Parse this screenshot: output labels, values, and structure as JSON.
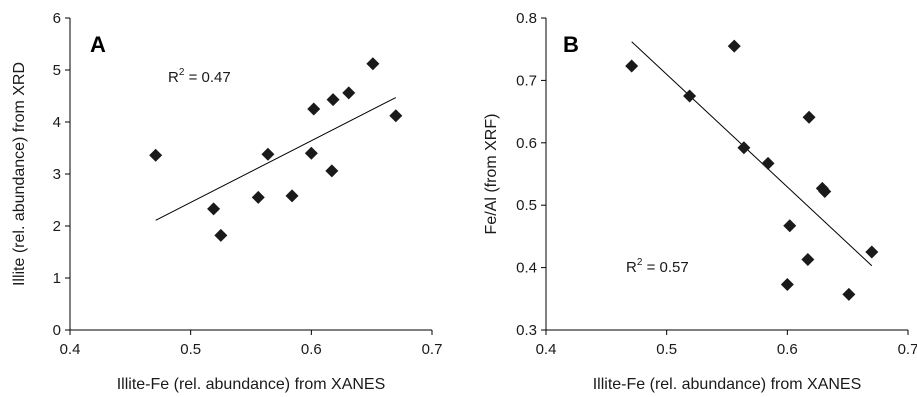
{
  "chart_data": [
    {
      "type": "scatter",
      "panel_label": "A",
      "xlabel": "Illite-Fe (rel. abundance) from XANES",
      "ylabel": "Illite (rel. abundance) from XRD",
      "xlim": [
        0.4,
        0.7
      ],
      "ylim": [
        0,
        6
      ],
      "xticks": [
        "0.4",
        "0.5",
        "0.6",
        "0.7"
      ],
      "yticks": [
        "0",
        "1",
        "2",
        "3",
        "4",
        "5",
        "6"
      ],
      "points": [
        {
          "x": 0.471,
          "y": 3.36
        },
        {
          "x": 0.519,
          "y": 2.33
        },
        {
          "x": 0.525,
          "y": 1.82
        },
        {
          "x": 0.556,
          "y": 2.55
        },
        {
          "x": 0.564,
          "y": 3.38
        },
        {
          "x": 0.584,
          "y": 2.58
        },
        {
          "x": 0.6,
          "y": 3.4
        },
        {
          "x": 0.602,
          "y": 4.25
        },
        {
          "x": 0.617,
          "y": 3.06
        },
        {
          "x": 0.618,
          "y": 4.43
        },
        {
          "x": 0.631,
          "y": 4.56
        },
        {
          "x": 0.651,
          "y": 5.12
        },
        {
          "x": 0.67,
          "y": 4.12
        }
      ],
      "trendline": {
        "x": [
          0.471,
          0.67
        ],
        "y": [
          2.11,
          4.47
        ]
      },
      "annotation": {
        "base": "R",
        "sup": "2",
        "rest": " = 0.47"
      },
      "grid": false,
      "marker_color": "#1a1a1a"
    },
    {
      "type": "scatter",
      "panel_label": "B",
      "xlabel": "Illite-Fe (rel. abundance) from XANES",
      "ylabel": "Fe/Al (from XRF)",
      "xlim": [
        0.4,
        0.7
      ],
      "ylim": [
        0.3,
        0.8
      ],
      "xticks": [
        "0.4",
        "0.5",
        "0.6",
        "0.7"
      ],
      "yticks": [
        "0.3",
        "0.4",
        "0.5",
        "0.6",
        "0.7",
        "0.8"
      ],
      "points": [
        {
          "x": 0.471,
          "y": 0.723
        },
        {
          "x": 0.519,
          "y": 0.675
        },
        {
          "x": 0.556,
          "y": 0.755
        },
        {
          "x": 0.564,
          "y": 0.592
        },
        {
          "x": 0.584,
          "y": 0.567
        },
        {
          "x": 0.6,
          "y": 0.373
        },
        {
          "x": 0.602,
          "y": 0.467
        },
        {
          "x": 0.617,
          "y": 0.413
        },
        {
          "x": 0.618,
          "y": 0.641
        },
        {
          "x": 0.629,
          "y": 0.527
        },
        {
          "x": 0.631,
          "y": 0.522
        },
        {
          "x": 0.651,
          "y": 0.357
        },
        {
          "x": 0.67,
          "y": 0.425
        }
      ],
      "trendline": {
        "x": [
          0.471,
          0.67
        ],
        "y": [
          0.762,
          0.403
        ]
      },
      "annotation": {
        "base": "R",
        "sup": "2",
        "rest": " = 0.57"
      },
      "grid": false,
      "marker_color": "#1a1a1a"
    }
  ]
}
